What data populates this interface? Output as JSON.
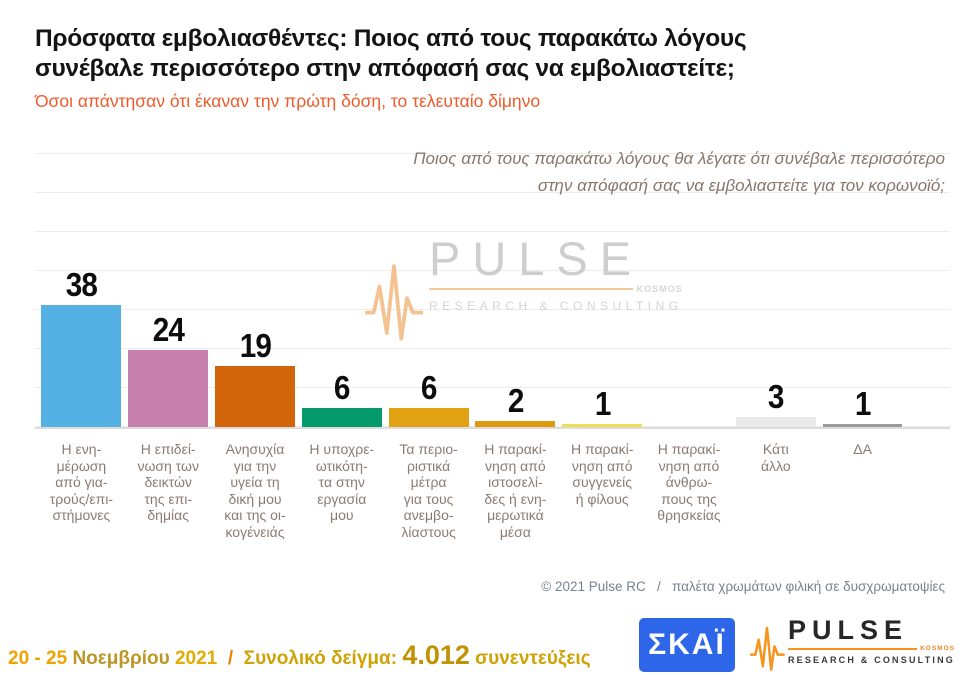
{
  "header": {
    "title": "Πρόσφατα εμβολιασθέντες: Ποιος από τους παρακάτω λόγους\nσυνέβαλε περισσότερο στην απόφασή σας να εμβολιαστείτε;",
    "subtitle": "Όσοι απάντησαν ότι έκαναν την πρώτη δόση, το τελευταίο δίμηνο"
  },
  "question": "Ποιος από τους παρακάτω λόγους θα λέγατε ότι συνέβαλε περισσότερο\nστην απόφασή σας να εμβολιαστείτε για τον κορωνοϊό;",
  "watermark": {
    "brand": "PULSE",
    "tag": "KOSMOS",
    "sub": "RESEARCH & CONSULTING"
  },
  "chart_data": {
    "type": "bar",
    "title": "Πρόσφατα εμβολιασθέντες: Ποιος από τους παρακάτω λόγους συνέβαλε περισσότερο στην απόφασή σας να εμβολιαστείτε;",
    "xlabel": "",
    "ylabel": "",
    "ylim": [
      0,
      88
    ],
    "grid": "horizontal",
    "legend": null,
    "categories": [
      "Η ενημέρωση από γιατρούς/επιστήμονες",
      "Η επιδείνωση των δεικτών της επιδημίας",
      "Ανησυχία για την υγεία τη δική μου και της οικογένειάς",
      "Η υποχρεωτικότητα στην εργασία μου",
      "Τα περιοριστικά μέτρα για τους ανεμβολίαστους",
      "Η παρακίνηση από ιστοσελίδες ή ενημερωτικά μέσα",
      "Η παρακίνηση από συγγενείς ή φίλους",
      "Η παρακίνηση από άνθρωπους της θρησκείας",
      "Κάτι άλλο",
      "ΔΑ"
    ],
    "category_labels": [
      "Η ενη-\nμέρωση\nαπό για-\nτρούς/επι-\nστήμονες",
      "Η επιδεί-\nνωση των\nδεικτών\nτης επι-\nδημίας",
      "Ανησυχία\nγια την\nυγεία τη\nδική μου\nκαι της οι-\nκογένειάς",
      "Η υποχρε-\nωτικότη-\nτα στην\nεργασία\nμου",
      "Τα περιο-\nριστικά\nμέτρα\nγια τους\nανεμβο-\nλίαστους",
      "Η παρακί-\nνηση από\nιστοσελί-\nδες ή ενη-\nμερωτικά\nμέσα",
      "Η παρακί-\nνηση από\nσυγγενείς\nή φίλους",
      "Η παρακί-\nνηση από\nάνθρω-\nπους της\nθρησκείας",
      "Κάτι\nάλλο",
      "ΔΑ"
    ],
    "values": [
      38,
      24,
      19,
      6,
      6,
      2,
      1,
      null,
      3,
      1
    ],
    "colors": [
      "#55b0e4",
      "#c77fae",
      "#d2640a",
      "#049a6b",
      "#e0a213",
      "#e0980e",
      "#ece052",
      "#cccccc",
      "#e9e9e9",
      "#9b9b9b"
    ]
  },
  "footnote": "© 2021 Pulse RC   /   παλέτα χρωμάτων φιλική σε δυσχρωματοψίες",
  "footer": {
    "date_range": "20 - 25",
    "month": "Νοεμβρίου",
    "year": "2021",
    "separator": "/",
    "sample_label": "Συνολικό δείγμα:",
    "sample_value": "4.012",
    "sample_unit": "συνεντεύξεις",
    "skai_logo_text": "ΣΚΑΪ",
    "pulse_logo": {
      "brand": "PULSE",
      "tag": "KOSMOS",
      "sub": "RESEARCH & CONSULTING"
    }
  },
  "colors": {
    "subtitle_orange": "#ee5a2b",
    "muted_label_gray": "#8b7b73",
    "copyright_gray": "#76828f",
    "skai_blue": "#2d66e8",
    "pulse_orange": "#f7941d",
    "footer_gold": "#cfa205",
    "footer_amber": "#f0a300",
    "footer_dark_gold": "#bc9727"
  }
}
